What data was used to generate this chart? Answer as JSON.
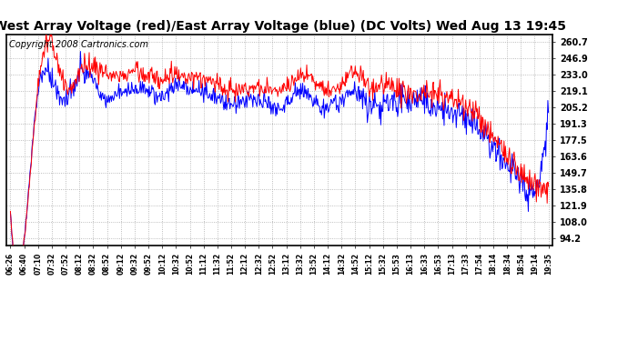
{
  "title": "West Array Voltage (red)/East Array Voltage (blue) (DC Volts) Wed Aug 13 19:45",
  "copyright": "Copyright 2008 Cartronics.com",
  "yticks": [
    94.2,
    108.0,
    121.9,
    135.8,
    149.7,
    163.6,
    177.5,
    191.3,
    205.2,
    219.1,
    233.0,
    246.9,
    260.7
  ],
  "ylim": [
    88.0,
    267.0
  ],
  "xtick_labels": [
    "06:26",
    "06:40",
    "07:10",
    "07:32",
    "07:52",
    "08:12",
    "08:32",
    "08:52",
    "09:12",
    "09:32",
    "09:52",
    "10:12",
    "10:32",
    "10:52",
    "11:12",
    "11:32",
    "11:52",
    "12:12",
    "12:32",
    "12:52",
    "13:12",
    "13:32",
    "13:52",
    "14:12",
    "14:32",
    "14:52",
    "15:12",
    "15:32",
    "15:53",
    "16:13",
    "16:33",
    "16:53",
    "17:13",
    "17:33",
    "17:54",
    "18:14",
    "18:34",
    "18:54",
    "19:14",
    "19:35"
  ],
  "bg_color": "#ffffff",
  "plot_bg_color": "#ffffff",
  "grid_color": "#aaaaaa",
  "red_color": "#ff0000",
  "blue_color": "#0000ff",
  "title_fontsize": 10,
  "copyright_fontsize": 7
}
